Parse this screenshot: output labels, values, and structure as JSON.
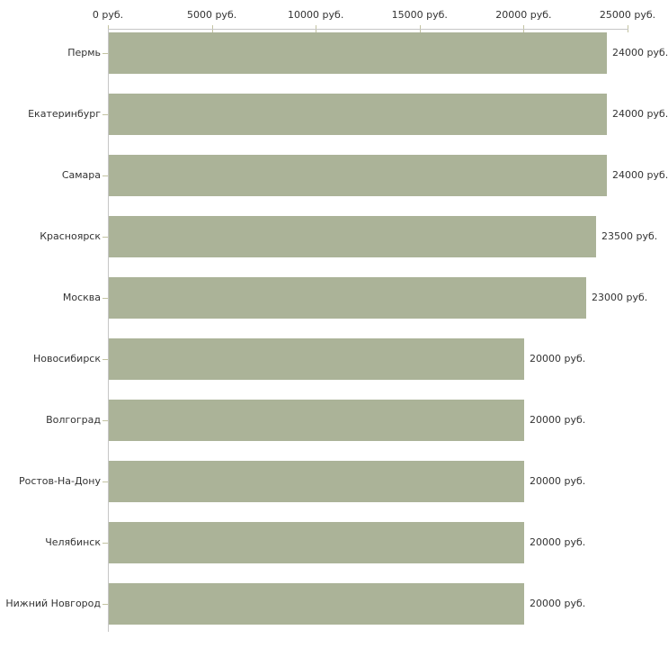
{
  "chart_data": {
    "type": "bar",
    "orientation": "horizontal",
    "title": "",
    "xlabel": "",
    "ylabel": "",
    "categories": [
      "Пермь",
      "Екатеринбург",
      "Самара",
      "Красноярск",
      "Москва",
      "Новосибирск",
      "Волгоград",
      "Ростов-На-Дону",
      "Челябинск",
      "Нижний Новгород"
    ],
    "values": [
      24000,
      24000,
      24000,
      23500,
      23000,
      20000,
      20000,
      20000,
      20000,
      20000
    ],
    "value_labels": [
      "24000 руб.",
      "24000 руб.",
      "24000 руб.",
      "23500 руб.",
      "23000 руб.",
      "20000 руб.",
      "20000 руб.",
      "20000 руб.",
      "20000 руб.",
      "20000 руб."
    ],
    "x_axis": {
      "position": "top",
      "tick_values": [
        0,
        5000,
        10000,
        15000,
        20000,
        25000
      ],
      "tick_labels": [
        "0 руб.",
        "5000 руб.",
        "10000 руб.",
        "15000 руб.",
        "20000 руб.",
        "25000 руб."
      ],
      "min": 0,
      "max": 25000
    },
    "grid": false,
    "legend": false,
    "unit": "руб.",
    "colors": {
      "bar": "#abb398",
      "axis_line": "#c6c6c6",
      "tick_mark": "#c3c3a2",
      "text": "#333333",
      "background": "#ffffff"
    }
  }
}
